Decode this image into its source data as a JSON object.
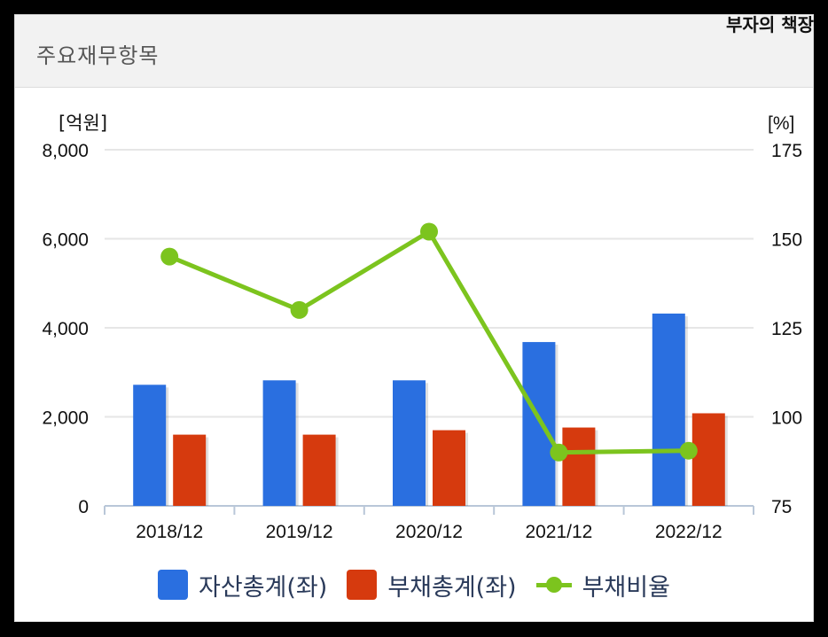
{
  "header": {
    "title": "주요재무항목",
    "corner_label": "부자의 책장"
  },
  "colors": {
    "assets": "#2a6fe0",
    "liabilities": "#d63a0e",
    "ratio": "#7cc41e",
    "grid": "#e6e6e6",
    "axis": "#b9c7d8"
  },
  "chart_data": {
    "type": "bar",
    "categories": [
      "2018/12",
      "2019/12",
      "2020/12",
      "2021/12",
      "2022/12"
    ],
    "left_axis": {
      "unit": "[억원]",
      "ylim": [
        0,
        8000
      ],
      "ticks": [
        "0",
        "2,000",
        "4,000",
        "6,000",
        "8,000"
      ]
    },
    "right_axis": {
      "unit": "[%]",
      "ylim": [
        75,
        175
      ],
      "ticks": [
        "75",
        "100",
        "125",
        "150",
        "175"
      ]
    },
    "series": [
      {
        "name": "자산총계(좌)",
        "kind": "bar",
        "axis": "left",
        "values": [
          2720,
          2820,
          2820,
          3680,
          4320
        ]
      },
      {
        "name": "부채총계(좌)",
        "kind": "bar",
        "axis": "left",
        "values": [
          1600,
          1600,
          1700,
          1760,
          2080
        ]
      },
      {
        "name": "부채비율",
        "kind": "line",
        "axis": "right",
        "values": [
          145,
          130,
          152,
          90,
          90.5
        ]
      }
    ],
    "grid": true,
    "legend_position": "bottom"
  }
}
